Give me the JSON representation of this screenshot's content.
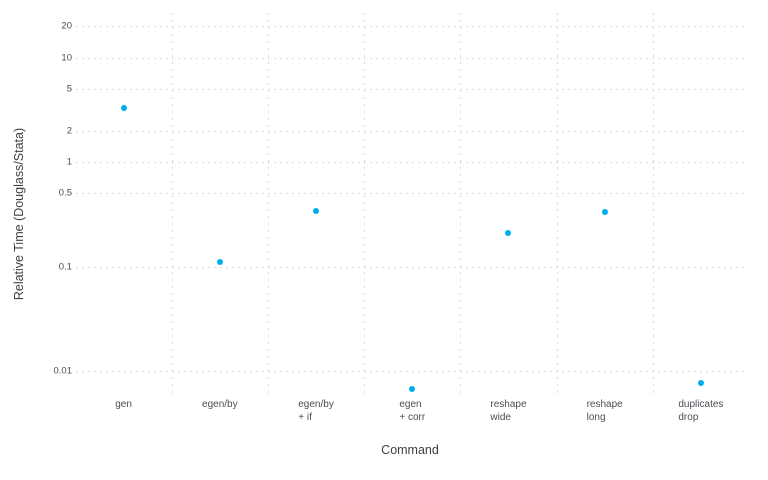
{
  "chart_data": {
    "type": "scatter",
    "title": "",
    "xlabel": "Command",
    "ylabel": "Relative Time (Douglass/Stata)",
    "yscale": "log",
    "categories": [
      [
        "gen"
      ],
      [
        "egen/by"
      ],
      [
        "egen/by",
        "+ if"
      ],
      [
        "egen",
        "+ corr"
      ],
      [
        "reshape",
        "wide"
      ],
      [
        "reshape",
        "long"
      ],
      [
        "duplicates",
        "drop"
      ]
    ],
    "values": [
      3.3,
      0.11,
      0.34,
      0.0068,
      0.21,
      0.33,
      0.0077
    ],
    "y_axis": {
      "ticks": [
        {
          "value": 20,
          "label": "20"
        },
        {
          "value": 10,
          "label": "10"
        },
        {
          "value": 5,
          "label": "5"
        },
        {
          "value": 2,
          "label": "2"
        },
        {
          "value": 1,
          "label": "1"
        },
        {
          "value": 0.5,
          "label": "0.5"
        },
        {
          "value": 0.1,
          "label": "0.1"
        },
        {
          "value": 0.01,
          "label": "0.01"
        }
      ],
      "range_approx": [
        0.006,
        27
      ]
    },
    "grid": {
      "horizontal": "dashed at each y tick",
      "vertical": "dashed between categories"
    },
    "legend": "none",
    "marker_color": "#00aeef",
    "gridline_color": "#d9dae3",
    "background_color": "#ffffff"
  }
}
